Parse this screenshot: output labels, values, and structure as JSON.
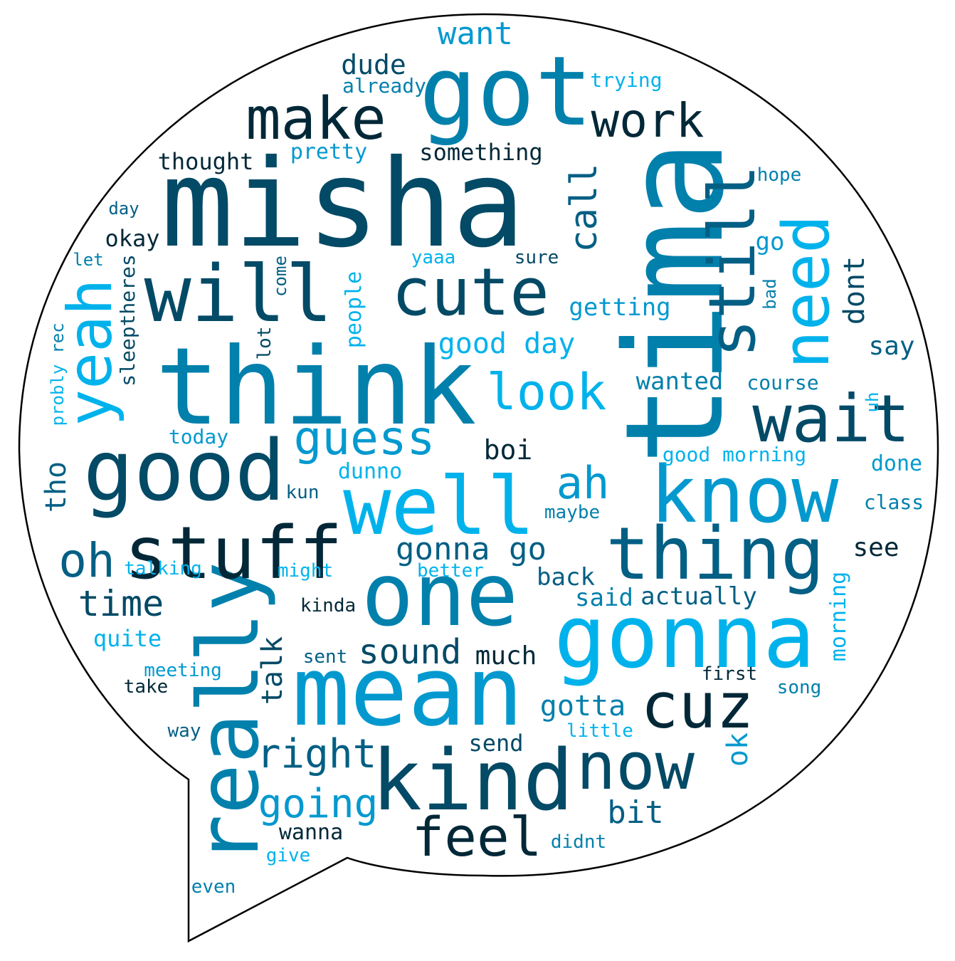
{
  "palette": {
    "sky": "#00b2ec",
    "light": "#0399cf",
    "mid": "#0280ac",
    "deep": "#035f84",
    "dark": "#034a66",
    "darkest": "#022838"
  },
  "bubble": {
    "fill": "#ffffff",
    "stroke": "#000000"
  },
  "words": [
    {
      "text": "misha",
      "color": "dark"
    },
    {
      "text": "tima",
      "color": "mid"
    },
    {
      "text": "think",
      "color": "mid"
    },
    {
      "text": "got",
      "color": "mid"
    },
    {
      "text": "mean",
      "color": "light"
    },
    {
      "text": "good",
      "color": "dark"
    },
    {
      "text": "well",
      "color": "sky"
    },
    {
      "text": "one",
      "color": "mid"
    },
    {
      "text": "gonna",
      "color": "sky"
    },
    {
      "text": "know",
      "color": "light"
    },
    {
      "text": "kind",
      "color": "dark"
    },
    {
      "text": "really",
      "color": "mid"
    },
    {
      "text": "will",
      "color": "dark"
    },
    {
      "text": "stuff",
      "color": "darkest"
    },
    {
      "text": "thing",
      "color": "deep"
    },
    {
      "text": "wait",
      "color": "dark"
    },
    {
      "text": "cute",
      "color": "dark"
    },
    {
      "text": "now",
      "color": "dark"
    },
    {
      "text": "cuz",
      "color": "darkest"
    },
    {
      "text": "still",
      "color": "deep"
    },
    {
      "text": "need",
      "color": "sky"
    },
    {
      "text": "make",
      "color": "darkest"
    },
    {
      "text": "yeah",
      "color": "sky"
    },
    {
      "text": "feel",
      "color": "darkest"
    },
    {
      "text": "look",
      "color": "sky"
    },
    {
      "text": "work",
      "color": "darkest"
    },
    {
      "text": "guess",
      "color": "light"
    },
    {
      "text": "oh",
      "color": "deep"
    },
    {
      "text": "going",
      "color": "light"
    },
    {
      "text": "right",
      "color": "deep"
    },
    {
      "text": "ah",
      "color": "light"
    },
    {
      "text": "time",
      "color": "dark"
    },
    {
      "text": "sound",
      "color": "dark"
    },
    {
      "text": "call",
      "color": "deep"
    },
    {
      "text": "gonna go",
      "color": "deep"
    },
    {
      "text": "good day",
      "color": "sky"
    },
    {
      "text": "want",
      "color": "light"
    },
    {
      "text": "bit",
      "color": "deep"
    },
    {
      "text": "dont",
      "color": "dark"
    },
    {
      "text": "tho",
      "color": "deep"
    },
    {
      "text": "gotta",
      "color": "mid"
    },
    {
      "text": "ok",
      "color": "light"
    },
    {
      "text": "talk",
      "color": "dark"
    },
    {
      "text": "dude",
      "color": "dark"
    },
    {
      "text": "boi",
      "color": "darkest"
    },
    {
      "text": "wanted",
      "color": "mid"
    },
    {
      "text": "getting",
      "color": "light"
    },
    {
      "text": "actually",
      "color": "deep"
    },
    {
      "text": "much",
      "color": "darkest"
    },
    {
      "text": "say",
      "color": "deep"
    },
    {
      "text": "see",
      "color": "darkest"
    },
    {
      "text": "back",
      "color": "deep"
    },
    {
      "text": "said",
      "color": "mid"
    },
    {
      "text": "something",
      "color": "darkest"
    },
    {
      "text": "thought",
      "color": "darkest"
    },
    {
      "text": "okay",
      "color": "darkest"
    },
    {
      "text": "send",
      "color": "dark"
    },
    {
      "text": "wanna",
      "color": "darkest"
    },
    {
      "text": "go",
      "color": "light"
    },
    {
      "text": "quite",
      "color": "sky"
    },
    {
      "text": "done",
      "color": "light"
    },
    {
      "text": "dunno",
      "color": "sky"
    },
    {
      "text": "pretty",
      "color": "light"
    },
    {
      "text": "people",
      "color": "sky"
    },
    {
      "text": "morning",
      "color": "sky"
    },
    {
      "text": "sleeptheres",
      "color": "dark"
    },
    {
      "text": "course",
      "color": "mid"
    },
    {
      "text": "class",
      "color": "mid"
    },
    {
      "text": "good morning",
      "color": "sky"
    },
    {
      "text": "today",
      "color": "light"
    },
    {
      "text": "trying",
      "color": "sky"
    },
    {
      "text": "already",
      "color": "mid"
    },
    {
      "text": "hope",
      "color": "mid"
    },
    {
      "text": "sure",
      "color": "dark"
    },
    {
      "text": "yaaa",
      "color": "sky"
    },
    {
      "text": "maybe",
      "color": "mid"
    },
    {
      "text": "talking",
      "color": "sky"
    },
    {
      "text": "might",
      "color": "sky"
    },
    {
      "text": "better",
      "color": "sky"
    },
    {
      "text": "kinda",
      "color": "darkest"
    },
    {
      "text": "sent",
      "color": "deep"
    },
    {
      "text": "meeting",
      "color": "light"
    },
    {
      "text": "take",
      "color": "darkest"
    },
    {
      "text": "first",
      "color": "darkest"
    },
    {
      "text": "song",
      "color": "mid"
    },
    {
      "text": "little",
      "color": "sky"
    },
    {
      "text": "way",
      "color": "deep"
    },
    {
      "text": "give",
      "color": "sky"
    },
    {
      "text": "didnt",
      "color": "mid"
    },
    {
      "text": "even",
      "color": "mid"
    },
    {
      "text": "kun",
      "color": "deep"
    },
    {
      "text": "day",
      "color": "deep"
    },
    {
      "text": "let",
      "color": "mid"
    },
    {
      "text": "rec",
      "color": "mid"
    },
    {
      "text": "probly",
      "color": "sky"
    },
    {
      "text": "lot",
      "color": "dark"
    },
    {
      "text": "come",
      "color": "deep"
    },
    {
      "text": "bad",
      "color": "mid"
    },
    {
      "text": "uh",
      "color": "sky"
    }
  ]
}
